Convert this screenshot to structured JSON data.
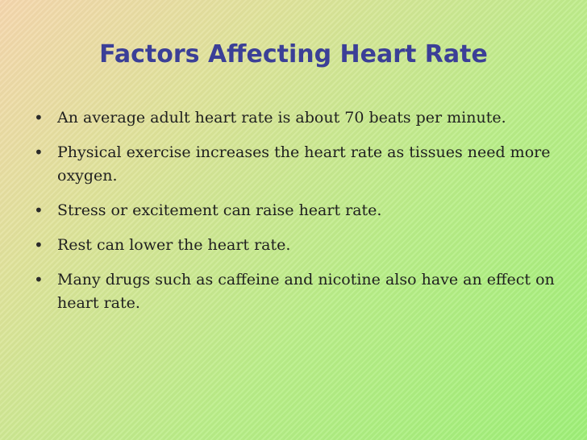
{
  "slide": {
    "title": "Factors Affecting Heart Rate",
    "bullets": [
      {
        "text": "An average adult heart rate is about 70 beats per minute."
      },
      {
        "text": "Physical exercise increases the heart rate as tissues need more oxygen."
      },
      {
        "text": "Stress or excitement can raise heart rate."
      },
      {
        "text": "Rest can lower the heart rate."
      },
      {
        "text": "Many drugs such as caffeine and nicotine also have an effect on heart rate."
      }
    ],
    "bullet_symbol": "•",
    "colors": {
      "title": "#3b3f97",
      "text": "#1f1f1f",
      "background_start": "#f6d7ae",
      "background_end": "#9ff078"
    }
  }
}
